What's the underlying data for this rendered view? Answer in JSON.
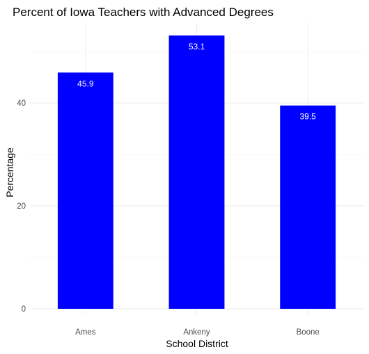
{
  "chart_data": {
    "type": "bar",
    "title": "Percent of Iowa Teachers with Advanced Degrees",
    "xlabel": "School District",
    "ylabel": "Percentage",
    "categories": [
      "Ames",
      "Ankeny",
      "Boone"
    ],
    "values": [
      45.9,
      53.1,
      39.5
    ],
    "data_labels": [
      "45.9",
      "53.1",
      "39.5"
    ],
    "y_ticks": [
      0,
      20,
      40
    ],
    "y_tick_labels": [
      "0",
      "20",
      "40"
    ],
    "ylim": [
      0,
      55.8
    ],
    "grid": true,
    "legend": "none",
    "bar_color": "#0000ff",
    "data_label_color": "#ffffff"
  }
}
